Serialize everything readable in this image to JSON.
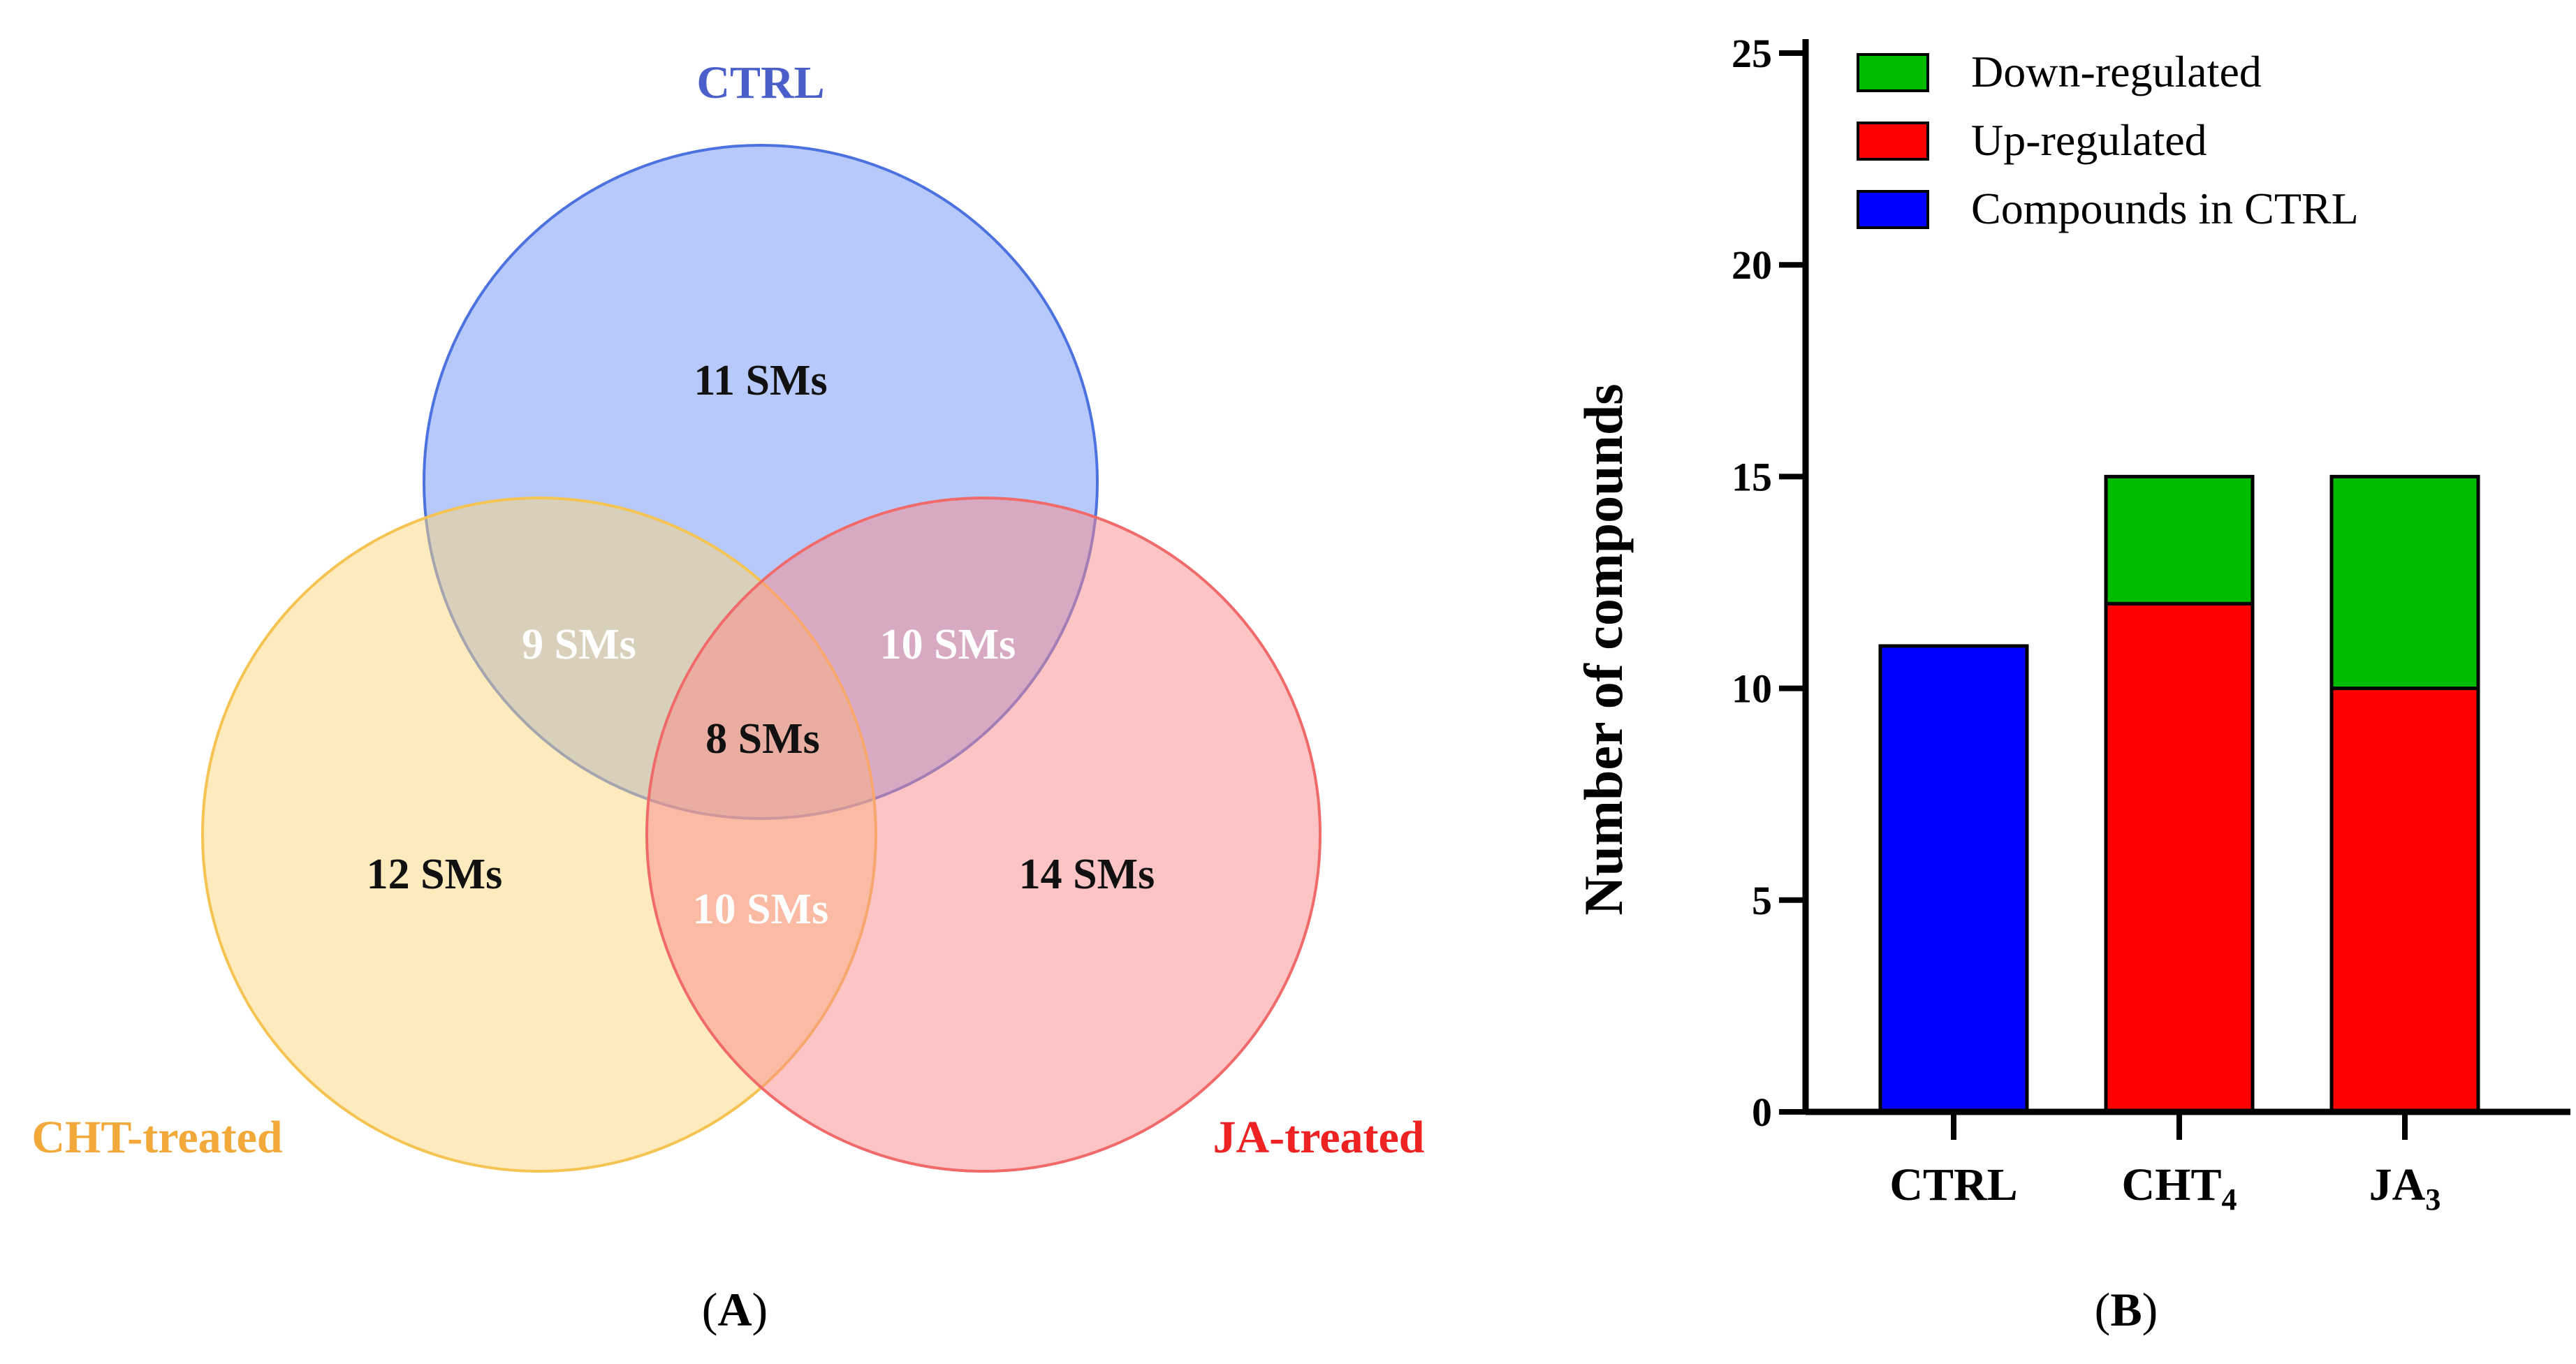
{
  "panel_a": {
    "label_open": "(",
    "label_letter": "A",
    "label_close": ")",
    "sets": [
      {
        "name": "CTRL",
        "fill": "#6f93f5",
        "stroke": "#4c72e0",
        "label_color": "#4a5fc9"
      },
      {
        "name": "CHT-treated",
        "fill": "#fbd77b",
        "stroke": "#f5c351",
        "label_color": "#f3a93a"
      },
      {
        "name": "JA-treated",
        "fill": "#f98a8a",
        "stroke": "#f06a6a",
        "label_color": "#ee2222"
      }
    ],
    "regions": [
      {
        "id": "ctrl-only",
        "text": "11 SMs",
        "color": "#111111"
      },
      {
        "id": "cht-only",
        "text": "12 SMs",
        "color": "#111111"
      },
      {
        "id": "ja-only",
        "text": "14 SMs",
        "color": "#111111"
      },
      {
        "id": "ctrl-cht",
        "text": "9 SMs",
        "color": "#ffffff"
      },
      {
        "id": "ctrl-ja",
        "text": "10 SMs",
        "color": "#ffffff"
      },
      {
        "id": "cht-ja",
        "text": "10 SMs",
        "color": "#ffffff"
      },
      {
        "id": "all",
        "text": "8 SMs",
        "color": "#111111"
      }
    ]
  },
  "panel_b": {
    "label_open": "(",
    "label_letter": "B",
    "label_close": ")"
  },
  "chart_data": {
    "type": "bar",
    "stacked": true,
    "title": "",
    "xlabel": "",
    "ylabel": "Number of compounds",
    "ylim": [
      0,
      25
    ],
    "yticks": [
      0,
      5,
      10,
      15,
      20,
      25
    ],
    "grid": false,
    "legend_position": "top-right",
    "categories": [
      {
        "base": "CTRL",
        "sub": ""
      },
      {
        "base": "CHT",
        "sub": "4"
      },
      {
        "base": "JA",
        "sub": "3"
      }
    ],
    "series": [
      {
        "name": "Compounds in CTRL",
        "color": "#0000ff",
        "values": [
          11,
          0,
          0
        ]
      },
      {
        "name": "Up-regulated",
        "color": "#ff0000",
        "values": [
          0,
          12,
          10
        ]
      },
      {
        "name": "Down-regulated",
        "color": "#00bb00",
        "values": [
          0,
          3,
          5
        ]
      }
    ],
    "legend_order": [
      "Down-regulated",
      "Up-regulated",
      "Compounds in CTRL"
    ]
  }
}
